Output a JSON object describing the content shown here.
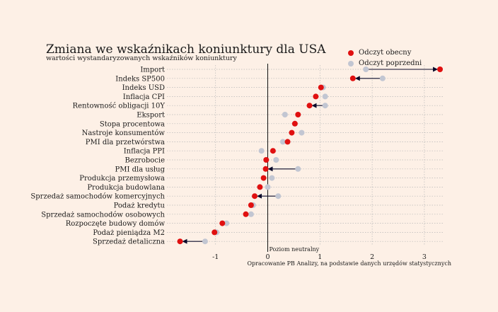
{
  "colors": {
    "background": "#fdf0e6",
    "current": "#e01010",
    "previous": "#c2c6d2",
    "arrow": "#0a0a2a",
    "zero_line": "#111111",
    "grid": "#b8b8b8"
  },
  "chart_data": {
    "type": "scatter",
    "subtype": "dumbbell-arrow",
    "title": "Zmiana we wskaźnikach koniunktury dla USA",
    "subtitle": "wartości wystandaryzowanych wskaźników koniunktury",
    "legend": [
      "Odczyt obecny",
      "Odczyt poprzedni"
    ],
    "legend_position": "top-right",
    "zero_label": "Poziom neutralny",
    "source": "Opracowanie PB Analizy, na podstawie danych urzędów statystycznych",
    "x_ticks": [
      -1,
      0,
      1,
      2,
      3
    ],
    "xlim": [
      -1.75,
      3.35
    ],
    "grid": "horizontal-dotted",
    "categories": [
      "Import",
      "Indeks SP500",
      "Indeks USD",
      "Inflacja CPI",
      "Rentowność obligacji 10Y",
      "Eksport",
      "Stopa procentowa",
      "Nastroje konsumentów",
      "PMI dla przetwórstwa",
      "Inflacja PPI",
      "Bezrobocie",
      "PMI dla usług",
      "Produkcja przemysłowa",
      "Produkcja budowlana",
      "Sprzedaż samochodów komercyjnych",
      "Podaż kredytu",
      "Sprzedaż samochodów osobowych",
      "Rozpoczęte budowy domów",
      "Podaż pieniądza M2",
      "Sprzedaż detaliczna"
    ],
    "series": [
      {
        "name": "Odczyt obecny",
        "values": [
          3.3,
          1.63,
          1.02,
          0.92,
          0.8,
          0.58,
          0.52,
          0.46,
          0.38,
          0.1,
          -0.03,
          -0.04,
          -0.08,
          -0.15,
          -0.25,
          -0.32,
          -0.42,
          -0.87,
          -1.02,
          -1.68
        ]
      },
      {
        "name": "Odczyt poprzedni",
        "values": [
          1.88,
          2.2,
          1.06,
          1.1,
          1.1,
          0.33,
          0.52,
          0.65,
          0.29,
          -0.12,
          0.16,
          0.58,
          0.08,
          0.0,
          0.2,
          -0.28,
          -0.32,
          -0.79,
          -0.98,
          -1.2
        ]
      }
    ],
    "arrows": [
      true,
      true,
      false,
      false,
      true,
      false,
      false,
      false,
      false,
      false,
      false,
      true,
      false,
      false,
      true,
      false,
      false,
      false,
      false,
      true
    ]
  }
}
